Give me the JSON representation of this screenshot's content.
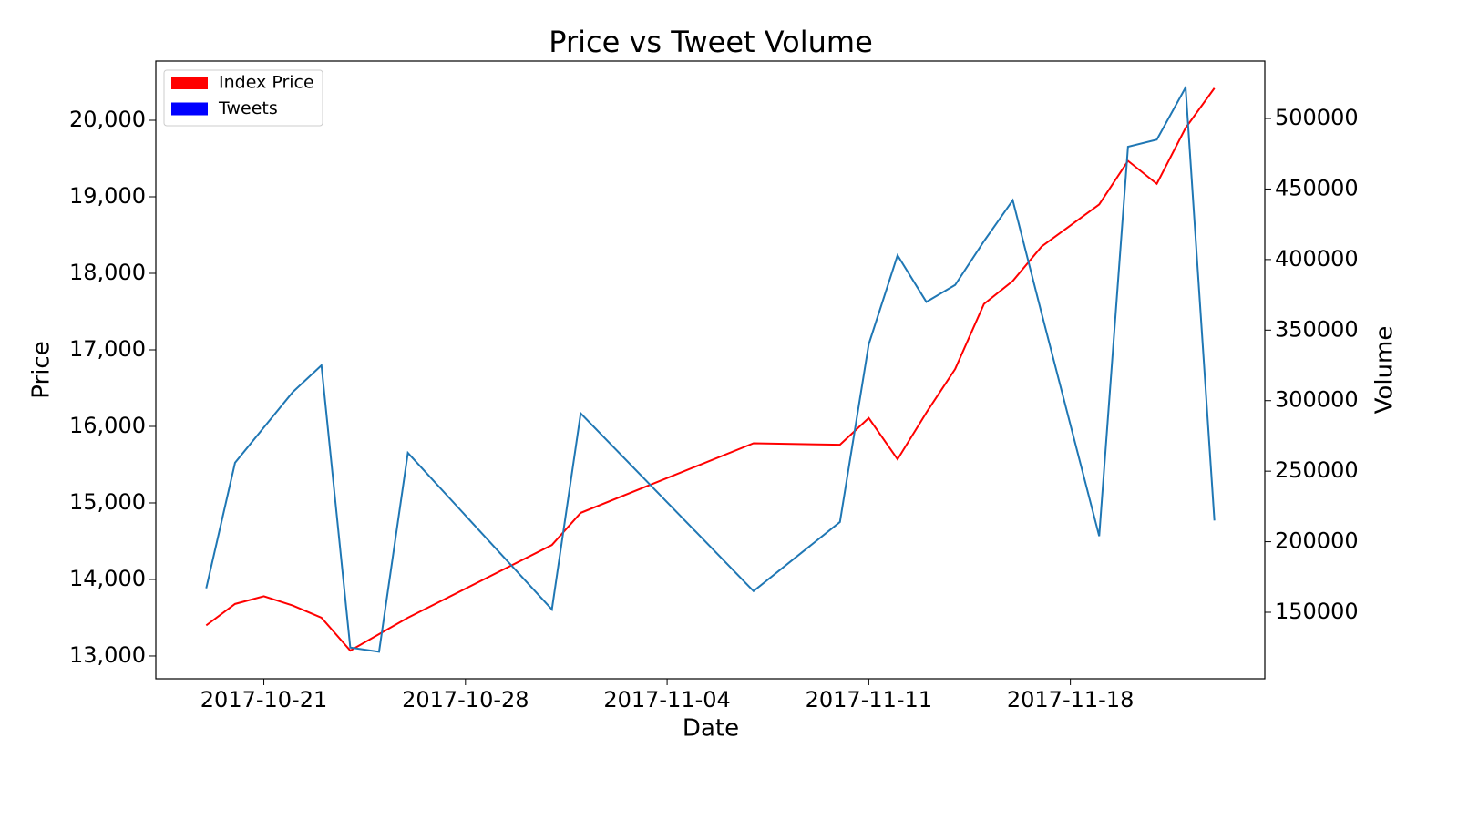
{
  "chart_data": {
    "type": "line",
    "title": "Price vs Tweet Volume",
    "xlabel": "Date",
    "ylabel": "Price",
    "y2label": "Volume",
    "x": [
      "2017-10-19",
      "2017-10-20",
      "2017-10-21",
      "2017-10-22",
      "2017-10-23",
      "2017-10-24",
      "2017-10-25",
      "2017-10-26",
      "2017-10-31",
      "2017-11-01",
      "2017-11-07",
      "2017-11-10",
      "2017-11-11",
      "2017-11-12",
      "2017-11-13",
      "2017-11-14",
      "2017-11-15",
      "2017-11-16",
      "2017-11-17",
      "2017-11-19",
      "2017-11-20",
      "2017-11-21",
      "2017-11-22",
      "2017-11-23"
    ],
    "series": [
      {
        "name": "Index Price",
        "color": "#ff0000",
        "legend_color": "#ff0000",
        "axis": "y",
        "values": [
          13400,
          13680,
          13780,
          13660,
          13500,
          13070,
          13285,
          13500,
          14450,
          14870,
          15780,
          15760,
          16110,
          15570,
          16180,
          16750,
          17600,
          17900,
          18350,
          18900,
          19470,
          19170,
          19900,
          20420
        ]
      },
      {
        "name": "Tweets",
        "color": "#1f77b4",
        "legend_color": "#0000ff",
        "axis": "y2",
        "values": [
          167000,
          256000,
          281000,
          306000,
          325000,
          125000,
          122000,
          263000,
          152000,
          291000,
          165000,
          214000,
          340000,
          403000,
          370000,
          382000,
          413000,
          442000,
          362000,
          204000,
          480000,
          485000,
          522000,
          215000
        ]
      }
    ],
    "xlim": [
      "2017-10-17T06:00",
      "2017-11-24T18:00"
    ],
    "xticks": [
      "2017-10-21",
      "2017-10-28",
      "2017-11-04",
      "2017-11-11",
      "2017-11-18"
    ],
    "ylim": [
      12702,
      20774
    ],
    "yticks": [
      {
        "value": 13000,
        "label": "13,000"
      },
      {
        "value": 14000,
        "label": "14,000"
      },
      {
        "value": 15000,
        "label": "15,000"
      },
      {
        "value": 16000,
        "label": "16,000"
      },
      {
        "value": 17000,
        "label": "17,000"
      },
      {
        "value": 18000,
        "label": "18,000"
      },
      {
        "value": 19000,
        "label": "19,000"
      },
      {
        "value": 20000,
        "label": "20,000"
      }
    ],
    "y2lim": [
      102860,
      540700
    ],
    "y2ticks": [
      150000,
      200000,
      250000,
      300000,
      350000,
      400000,
      450000,
      500000
    ],
    "legend": "upper left",
    "grid": false
  }
}
